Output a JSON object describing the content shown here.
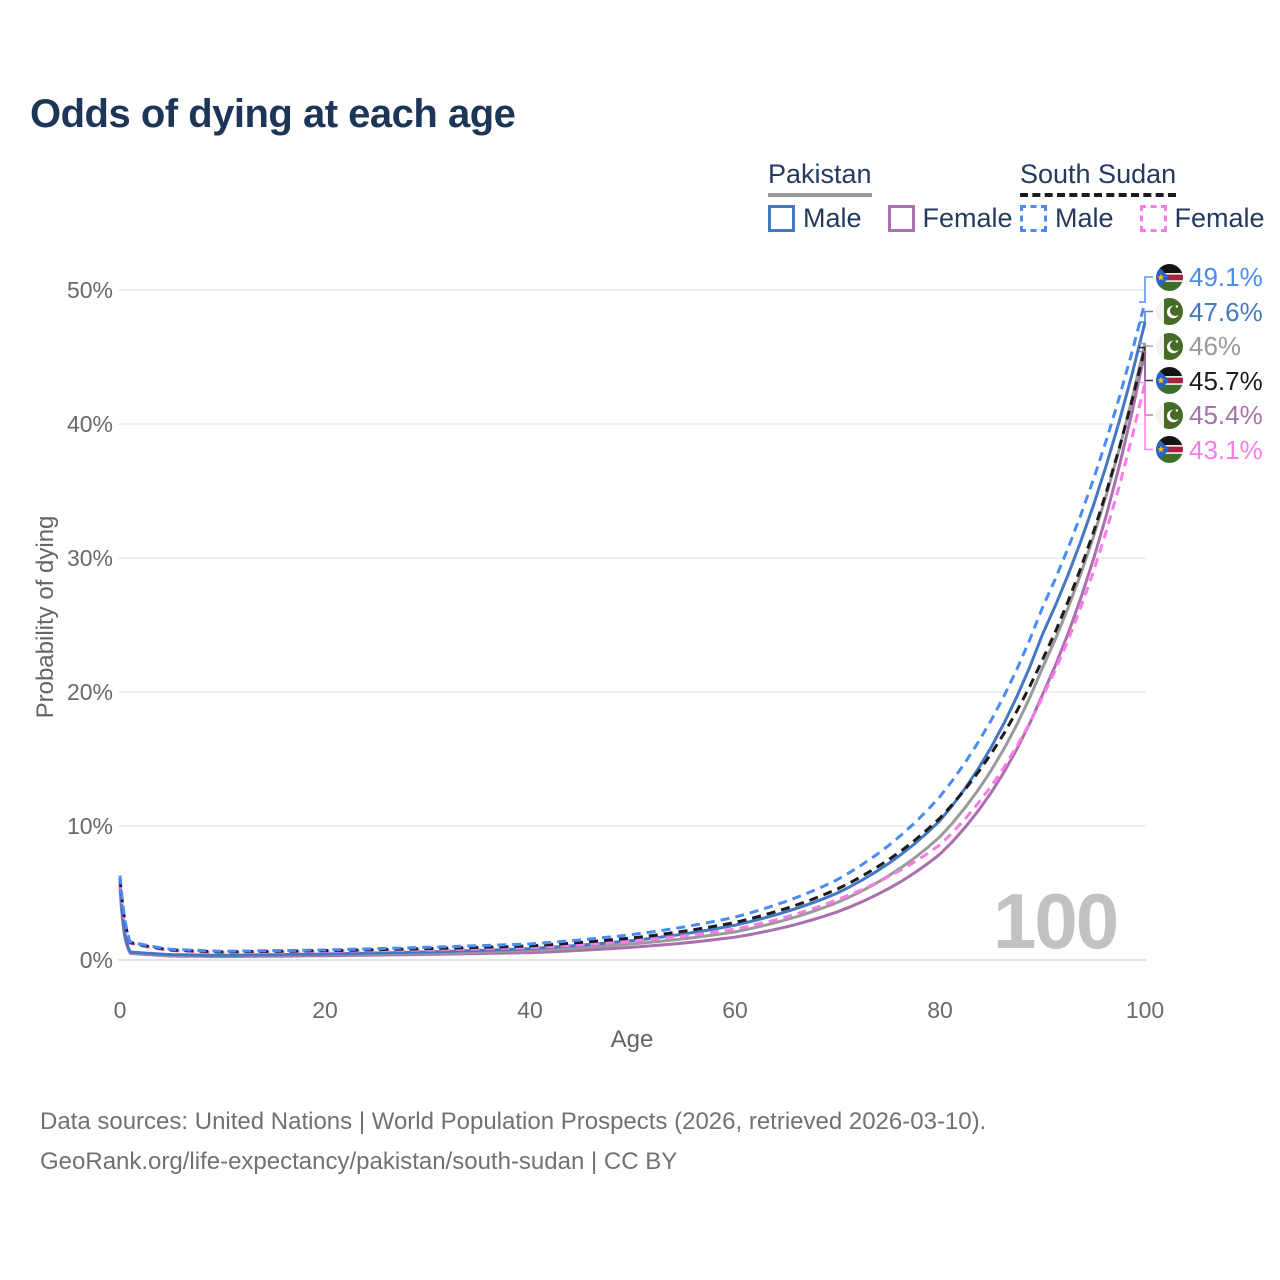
{
  "title": "Odds of dying at each age",
  "watermark": "100",
  "legend": {
    "groups": [
      {
        "label": "Pakistan",
        "line_style": "solid",
        "underline_color": "#9a9a9a",
        "items": [
          {
            "label": "Male",
            "color": "#4478c2"
          },
          {
            "label": "Female",
            "color": "#aa6fae"
          }
        ]
      },
      {
        "label": "South Sudan",
        "line_style": "dashed",
        "underline_color": "#1c1c1c",
        "items": [
          {
            "label": "Male",
            "color": "#4a8cf7"
          },
          {
            "label": "Female",
            "color": "#fb7ce8"
          }
        ]
      }
    ]
  },
  "footer": {
    "line1": "Data sources: United Nations | World Population Prospects (2026, retrieved 2026-03-10).",
    "line2": "GeoRank.org/life-expectancy/pakistan/south-sudan | CC BY"
  },
  "chart_data": {
    "type": "line",
    "title": "Odds of dying at each age",
    "xlabel": "Age",
    "ylabel": "Probability of dying",
    "x_ticks": [
      "0",
      "20",
      "40",
      "60",
      "80",
      "100"
    ],
    "y_ticks": [
      "0%",
      "10%",
      "20%",
      "30%",
      "40%",
      "50%"
    ],
    "xlim": [
      0,
      100
    ],
    "ylim_percent": [
      0,
      52
    ],
    "grid": "horizontal",
    "ages": [
      0,
      1,
      5,
      10,
      20,
      30,
      40,
      50,
      60,
      70,
      80,
      90,
      100
    ],
    "series": [
      {
        "name": "South Sudan Male",
        "country": "south-sudan",
        "sex": "male",
        "color": "#4a8cf7",
        "dashed": true,
        "end_label": "49.1%",
        "values": [
          6.3,
          1.35,
          0.8,
          0.65,
          0.75,
          0.95,
          1.2,
          1.9,
          3.2,
          6.0,
          12.2,
          26.3,
          49.1
        ]
      },
      {
        "name": "Pakistan Male",
        "country": "pakistan",
        "sex": "male",
        "color": "#4478c2",
        "dashed": false,
        "end_label": "47.6%",
        "values": [
          5.9,
          0.6,
          0.4,
          0.35,
          0.45,
          0.6,
          0.85,
          1.45,
          2.6,
          5.0,
          10.4,
          24.3,
          47.6
        ]
      },
      {
        "name": "Pakistan Both sexes",
        "country": "pakistan",
        "sex": "both",
        "color": "#9a9a9a",
        "dashed": false,
        "end_label": "46%",
        "values": [
          5.65,
          0.55,
          0.35,
          0.3,
          0.4,
          0.5,
          0.7,
          1.2,
          2.1,
          4.3,
          9.2,
          21.8,
          46.0
        ]
      },
      {
        "name": "South Sudan Both sexes",
        "country": "south-sudan",
        "sex": "both",
        "color": "#1c1c1c",
        "dashed": true,
        "end_label": "45.7%",
        "values": [
          6.1,
          1.3,
          0.75,
          0.6,
          0.7,
          0.85,
          1.05,
          1.65,
          2.8,
          5.3,
          10.6,
          22.4,
          45.7
        ]
      },
      {
        "name": "Pakistan Female",
        "country": "pakistan",
        "sex": "female",
        "color": "#aa6fae",
        "dashed": false,
        "end_label": "45.4%",
        "values": [
          5.4,
          0.5,
          0.3,
          0.25,
          0.32,
          0.42,
          0.55,
          0.95,
          1.7,
          3.6,
          7.9,
          19.8,
          45.4
        ]
      },
      {
        "name": "South Sudan Female",
        "country": "south-sudan",
        "sex": "female",
        "color": "#fb7ce8",
        "dashed": true,
        "end_label": "43.1%",
        "values": [
          5.95,
          1.25,
          0.7,
          0.55,
          0.65,
          0.75,
          0.92,
          1.4,
          2.3,
          4.5,
          8.6,
          19.6,
          43.1
        ]
      }
    ]
  }
}
